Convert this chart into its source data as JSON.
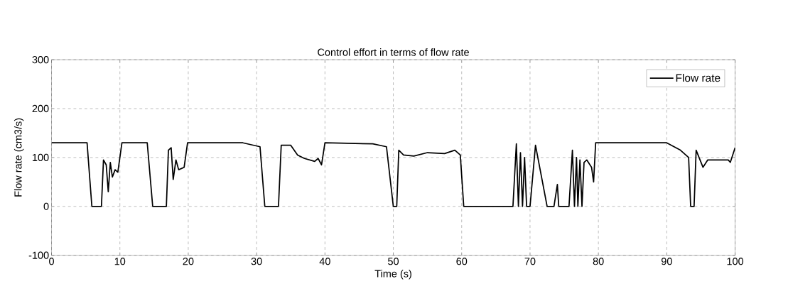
{
  "chart_data": {
    "type": "line",
    "title": "Control effort in terms of flow rate",
    "xlabel": "Time (s)",
    "ylabel": "Flow rate (cm3/s)",
    "xlim": [
      0,
      100
    ],
    "ylim": [
      -100,
      300
    ],
    "xticks": [
      0,
      10,
      20,
      30,
      40,
      50,
      60,
      70,
      80,
      90,
      100
    ],
    "yticks": [
      -100,
      0,
      100,
      200,
      300
    ],
    "grid": true,
    "legend": "top right",
    "line_style": "solid",
    "series": [
      {
        "name": "Flow rate",
        "color": "#000000",
        "x": [
          0,
          5.2,
          5.9,
          7.3,
          7.6,
          8.0,
          8.3,
          8.6,
          8.9,
          9.3,
          9.7,
          10.3,
          14.0,
          14.8,
          16.8,
          17.1,
          17.5,
          17.8,
          18.2,
          18.6,
          19.4,
          19.9,
          28,
          30.5,
          31.2,
          33.2,
          33.6,
          35,
          36,
          37,
          38.5,
          39,
          39.5,
          40,
          47,
          49,
          50,
          50.5,
          50.8,
          51.5,
          53,
          55,
          57.5,
          59,
          59.8,
          60.3,
          67.5,
          68,
          68.3,
          68.6,
          68.9,
          69.2,
          69.5,
          70,
          70.8,
          72.5,
          73.5,
          74,
          74.2,
          75.7,
          76.2,
          76.5,
          76.8,
          77,
          77.3,
          77.6,
          77.9,
          78.3,
          79,
          79.3,
          79.6,
          90,
          92,
          93.2,
          93.5,
          94,
          94.3,
          95.3,
          96,
          99,
          99.3,
          100
        ],
        "values": [
          130,
          130,
          0,
          0,
          95,
          85,
          30,
          90,
          60,
          75,
          70,
          130,
          130,
          0,
          0,
          115,
          120,
          55,
          95,
          75,
          80,
          130,
          130,
          122,
          0,
          0,
          125,
          125,
          105,
          98,
          92,
          98,
          85,
          130,
          128,
          122,
          0,
          0,
          115,
          105,
          103,
          110,
          108,
          115,
          105,
          0,
          0,
          128,
          0,
          110,
          0,
          100,
          0,
          0,
          125,
          0,
          0,
          45,
          0,
          0,
          115,
          0,
          100,
          0,
          95,
          0,
          90,
          95,
          80,
          50,
          130,
          130,
          115,
          100,
          0,
          0,
          115,
          80,
          95,
          95,
          90,
          120
        ]
      }
    ]
  }
}
